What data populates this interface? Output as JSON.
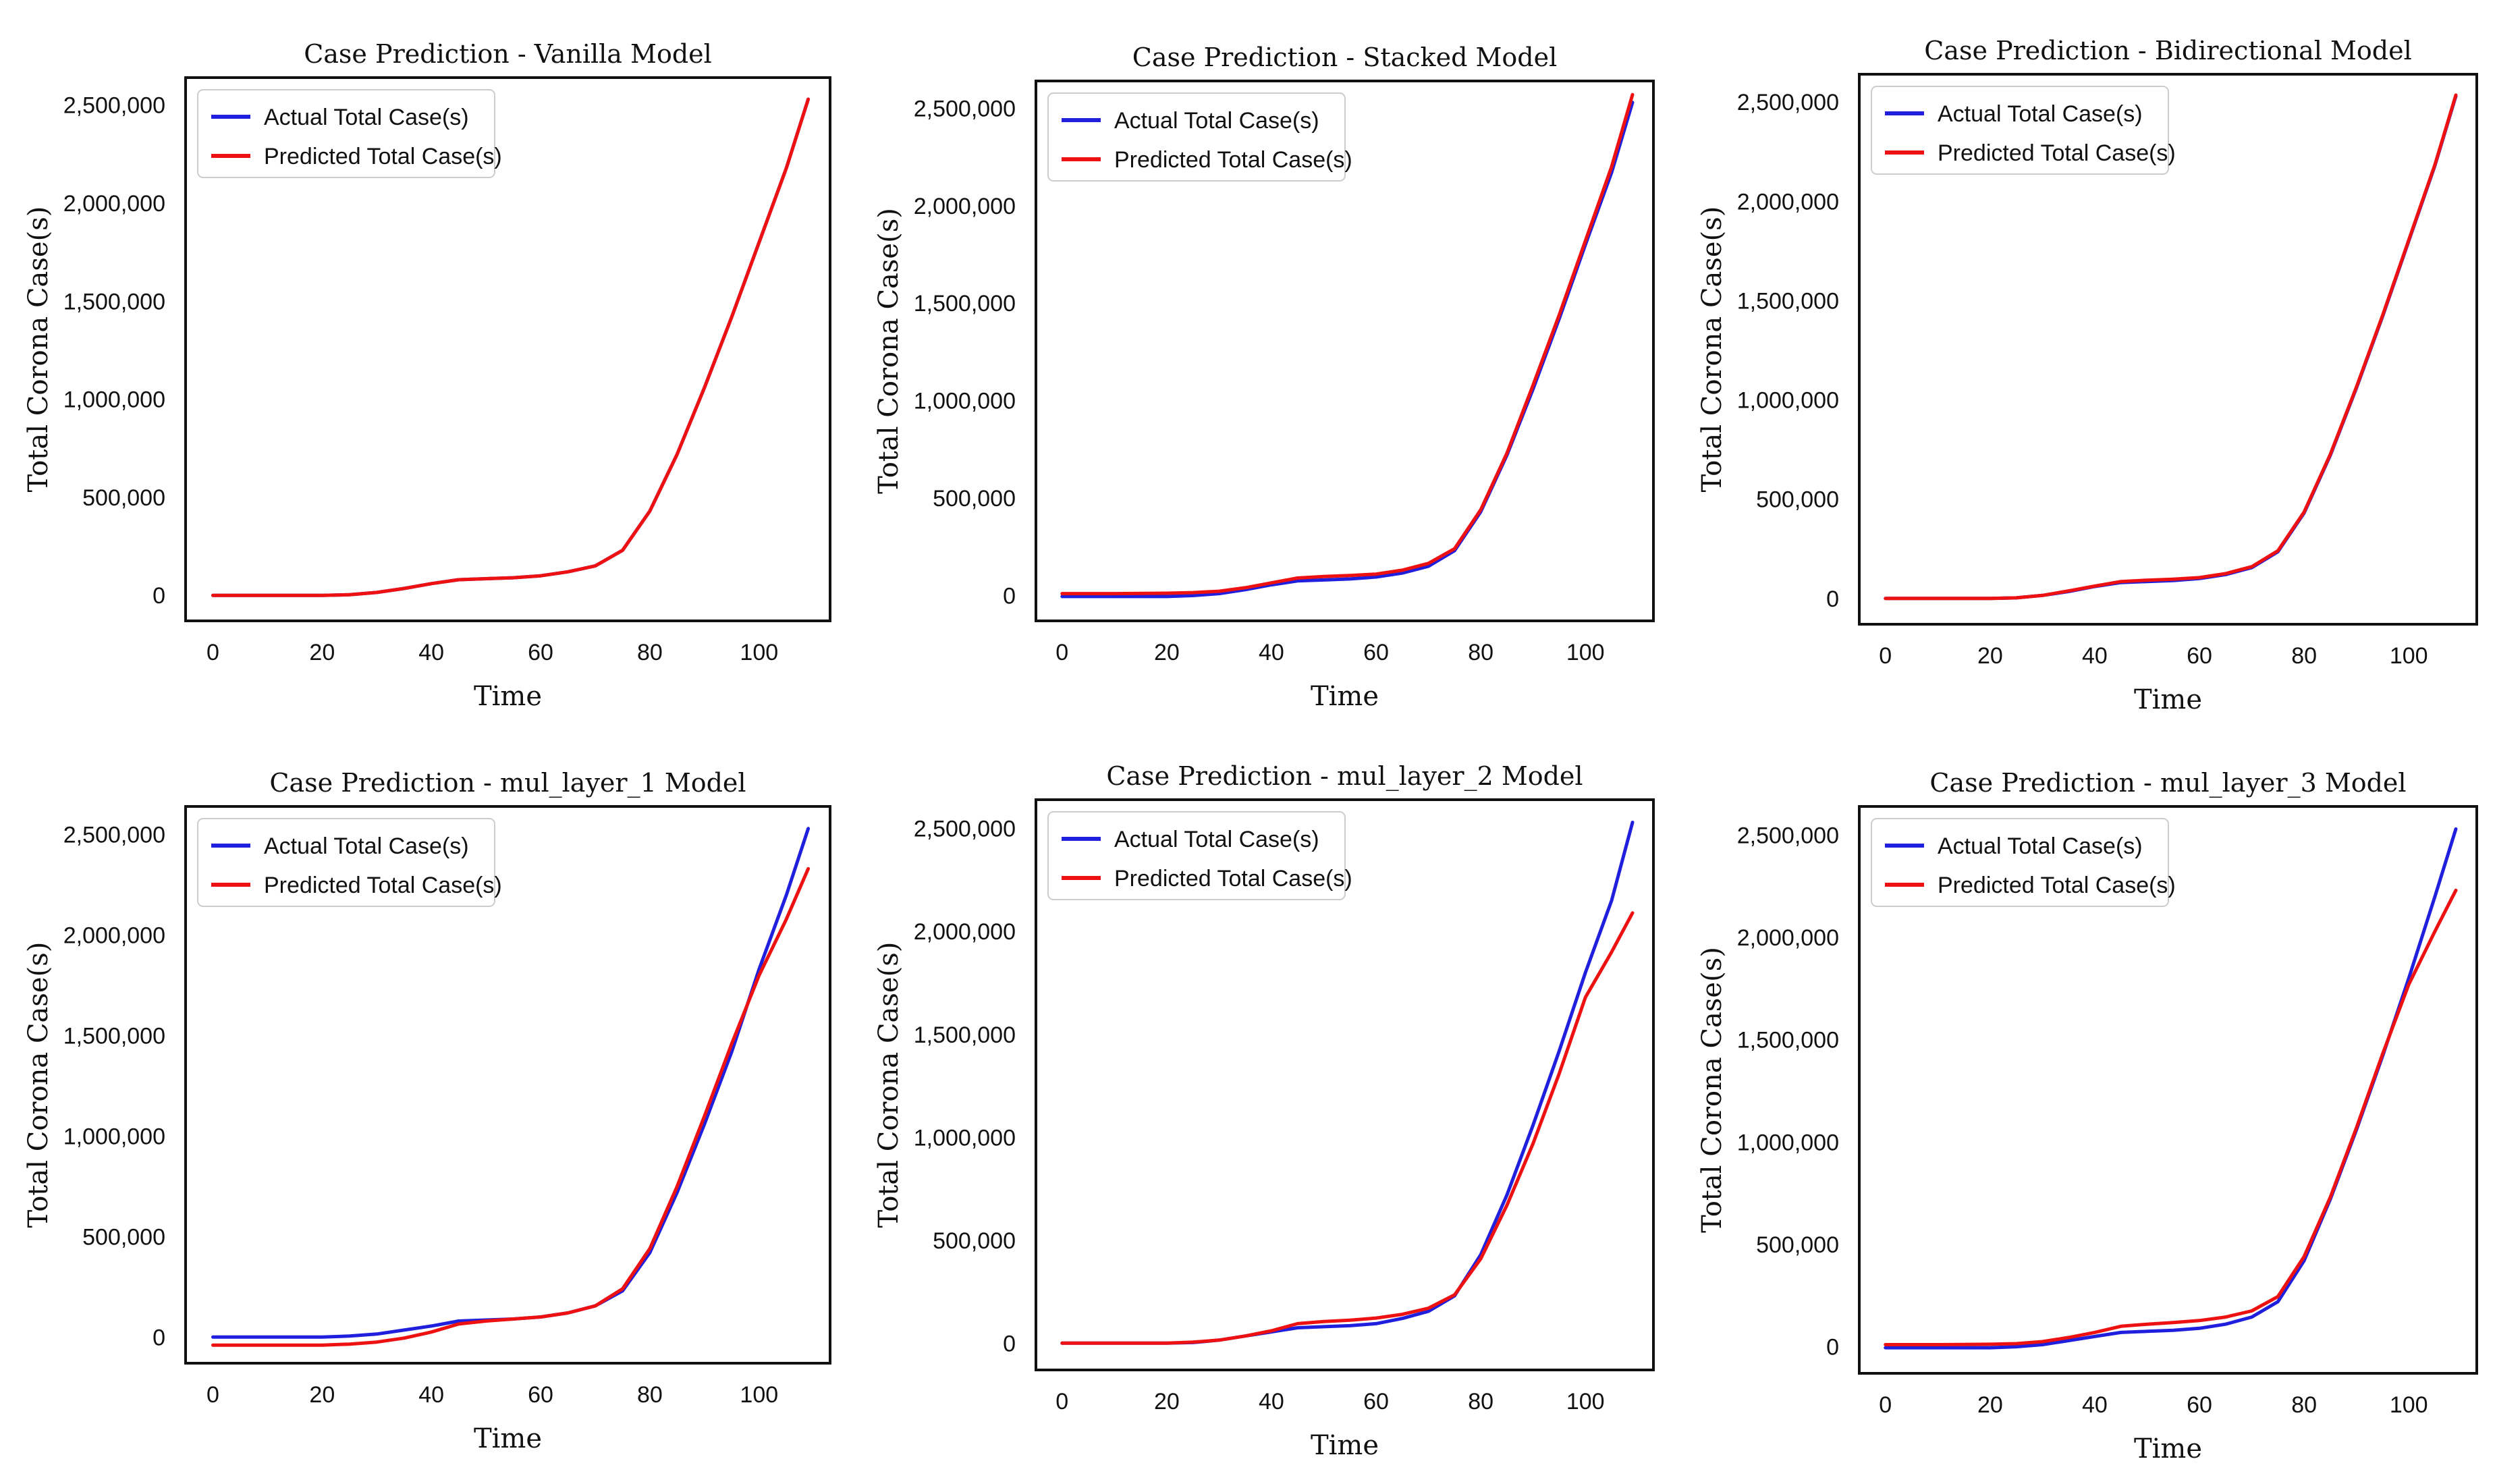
{
  "chart_data": [
    {
      "type": "line",
      "title": "Case Prediction - Vanilla Model",
      "xlabel": "Time",
      "ylabel": "Total Corona Case(s)",
      "xlim": [
        -5,
        113
      ],
      "ylim": [
        -130000,
        2640000
      ],
      "xticks": [
        0,
        20,
        40,
        60,
        80,
        100
      ],
      "yticks": [
        0,
        500000,
        1000000,
        1500000,
        2000000,
        2500000
      ],
      "ytick_labels": [
        "0",
        "500,000",
        "1,000,000",
        "1,500,000",
        "2,000,000",
        "2,500,000"
      ],
      "legend_position": "upper-left",
      "x": [
        0,
        10,
        20,
        25,
        30,
        35,
        40,
        45,
        50,
        55,
        60,
        65,
        70,
        75,
        80,
        85,
        90,
        95,
        100,
        105,
        109
      ],
      "series": [
        {
          "name": "Actual Total Case(s)",
          "color": "#1f1fdd",
          "values": [
            0,
            0,
            0,
            3000,
            15000,
            35000,
            60000,
            80000,
            85000,
            90000,
            100000,
            120000,
            150000,
            230000,
            430000,
            720000,
            1060000,
            1420000,
            1800000,
            2180000,
            2530000
          ]
        },
        {
          "name": "Predicted Total Case(s)",
          "color": "#ee1111",
          "values": [
            0,
            0,
            0,
            3000,
            15000,
            35000,
            60000,
            80000,
            85000,
            90000,
            100000,
            120000,
            150000,
            230000,
            430000,
            720000,
            1060000,
            1420000,
            1800000,
            2180000,
            2530000
          ]
        }
      ]
    },
    {
      "type": "line",
      "title": "Case Prediction - Stacked Model",
      "xlabel": "Time",
      "ylabel": "Total Corona Case(s)",
      "xlim": [
        -5,
        113
      ],
      "ylim": [
        -130000,
        2640000
      ],
      "xticks": [
        0,
        20,
        40,
        60,
        80,
        100
      ],
      "yticks": [
        0,
        500000,
        1000000,
        1500000,
        2000000,
        2500000
      ],
      "ytick_labels": [
        "0",
        "500,000",
        "1,000,000",
        "1,500,000",
        "2,000,000",
        "2,500,000"
      ],
      "legend_position": "upper-left",
      "x": [
        0,
        10,
        20,
        25,
        30,
        35,
        40,
        45,
        50,
        55,
        60,
        65,
        70,
        75,
        80,
        85,
        90,
        95,
        100,
        105,
        109
      ],
      "series": [
        {
          "name": "Actual Total Case(s)",
          "color": "#1f1fdd",
          "values": [
            -5000,
            -5000,
            -5000,
            0,
            10000,
            30000,
            55000,
            75000,
            80000,
            85000,
            95000,
            115000,
            150000,
            230000,
            430000,
            720000,
            1060000,
            1420000,
            1800000,
            2170000,
            2530000
          ]
        },
        {
          "name": "Predicted Total Case(s)",
          "color": "#ee1111",
          "values": [
            10000,
            10000,
            12000,
            15000,
            22000,
            40000,
            65000,
            90000,
            98000,
            103000,
            110000,
            130000,
            165000,
            240000,
            440000,
            730000,
            1080000,
            1440000,
            1820000,
            2200000,
            2570000
          ]
        }
      ]
    },
    {
      "type": "line",
      "title": "Case Prediction - Bidirectional Model",
      "xlabel": "Time",
      "ylabel": "Total Corona Case(s)",
      "xlim": [
        -5,
        113
      ],
      "ylim": [
        -130000,
        2640000
      ],
      "xticks": [
        0,
        20,
        40,
        60,
        80,
        100
      ],
      "yticks": [
        0,
        500000,
        1000000,
        1500000,
        2000000,
        2500000
      ],
      "ytick_labels": [
        "0",
        "500,000",
        "1,000,000",
        "1,500,000",
        "2,000,000",
        "2,500,000"
      ],
      "legend_position": "upper-left",
      "x": [
        0,
        10,
        20,
        25,
        30,
        35,
        40,
        45,
        50,
        55,
        60,
        65,
        70,
        75,
        80,
        85,
        90,
        95,
        100,
        105,
        109
      ],
      "series": [
        {
          "name": "Actual Total Case(s)",
          "color": "#1f1fdd",
          "values": [
            0,
            0,
            0,
            3000,
            15000,
            35000,
            60000,
            80000,
            85000,
            90000,
            100000,
            120000,
            155000,
            235000,
            430000,
            720000,
            1060000,
            1420000,
            1800000,
            2180000,
            2530000
          ]
        },
        {
          "name": "Predicted Total Case(s)",
          "color": "#ee1111",
          "values": [
            0,
            0,
            0,
            3000,
            15000,
            38000,
            62000,
            85000,
            92000,
            97000,
            105000,
            125000,
            160000,
            240000,
            435000,
            725000,
            1065000,
            1425000,
            1805000,
            2185000,
            2535000
          ]
        }
      ]
    },
    {
      "type": "line",
      "title": "Case Prediction - mul_layer_1 Model",
      "xlabel": "Time",
      "ylabel": "Total Corona Case(s)",
      "xlim": [
        -5,
        113
      ],
      "ylim": [
        -130000,
        2640000
      ],
      "xticks": [
        0,
        20,
        40,
        60,
        80,
        100
      ],
      "yticks": [
        0,
        500000,
        1000000,
        1500000,
        2000000,
        2500000
      ],
      "ytick_labels": [
        "0",
        "500,000",
        "1,000,000",
        "1,500,000",
        "2,000,000",
        "2,500,000"
      ],
      "legend_position": "upper-left",
      "x": [
        0,
        10,
        20,
        25,
        30,
        35,
        40,
        45,
        50,
        55,
        60,
        65,
        70,
        75,
        80,
        85,
        90,
        95,
        100,
        105,
        109
      ],
      "series": [
        {
          "name": "Actual Total Case(s)",
          "color": "#1f1fdd",
          "values": [
            0,
            0,
            0,
            5000,
            15000,
            35000,
            55000,
            80000,
            85000,
            90000,
            100000,
            120000,
            155000,
            230000,
            420000,
            720000,
            1060000,
            1420000,
            1830000,
            2200000,
            2530000
          ]
        },
        {
          "name": "Predicted Total Case(s)",
          "color": "#ee1111",
          "values": [
            -40000,
            -40000,
            -40000,
            -35000,
            -25000,
            -5000,
            25000,
            65000,
            80000,
            90000,
            100000,
            120000,
            155000,
            240000,
            440000,
            750000,
            1100000,
            1460000,
            1800000,
            2080000,
            2330000
          ]
        }
      ]
    },
    {
      "type": "line",
      "title": "Case Prediction - mul_layer_2 Model",
      "xlabel": "Time",
      "ylabel": "Total Corona Case(s)",
      "xlim": [
        -5,
        113
      ],
      "ylim": [
        -130000,
        2640000
      ],
      "xticks": [
        0,
        20,
        40,
        60,
        80,
        100
      ],
      "yticks": [
        0,
        500000,
        1000000,
        1500000,
        2000000,
        2500000
      ],
      "ytick_labels": [
        "0",
        "500,000",
        "1,000,000",
        "1,500,000",
        "2,000,000",
        "2,500,000"
      ],
      "legend_position": "upper-left",
      "x": [
        0,
        10,
        20,
        25,
        30,
        35,
        40,
        45,
        50,
        55,
        60,
        65,
        70,
        75,
        80,
        85,
        90,
        95,
        100,
        105,
        109
      ],
      "series": [
        {
          "name": "Actual Total Case(s)",
          "color": "#1f1fdd",
          "values": [
            0,
            0,
            0,
            3000,
            15000,
            35000,
            55000,
            75000,
            80000,
            85000,
            95000,
            120000,
            155000,
            230000,
            430000,
            720000,
            1060000,
            1420000,
            1800000,
            2150000,
            2530000
          ]
        },
        {
          "name": "Predicted Total Case(s)",
          "color": "#ee1111",
          "values": [
            0,
            0,
            0,
            5000,
            15000,
            35000,
            60000,
            95000,
            105000,
            112000,
            122000,
            140000,
            170000,
            235000,
            410000,
            670000,
            970000,
            1310000,
            1680000,
            1900000,
            2090000
          ]
        }
      ]
    },
    {
      "type": "line",
      "title": "Case Prediction - mul_layer_3 Model",
      "xlabel": "Time",
      "ylabel": "Total Corona Case(s)",
      "xlim": [
        -5,
        113
      ],
      "ylim": [
        -130000,
        2640000
      ],
      "xticks": [
        0,
        20,
        40,
        60,
        80,
        100
      ],
      "yticks": [
        0,
        500000,
        1000000,
        1500000,
        2000000,
        2500000
      ],
      "ytick_labels": [
        "0",
        "500,000",
        "1,000,000",
        "1,500,000",
        "2,000,000",
        "2,500,000"
      ],
      "legend_position": "upper-left",
      "x": [
        0,
        10,
        20,
        25,
        30,
        35,
        40,
        45,
        50,
        55,
        60,
        65,
        70,
        75,
        80,
        85,
        90,
        95,
        100,
        105,
        109
      ],
      "series": [
        {
          "name": "Actual Total Case(s)",
          "color": "#1f1fdd",
          "values": [
            -5000,
            -5000,
            -5000,
            0,
            10000,
            30000,
            50000,
            70000,
            75000,
            80000,
            90000,
            110000,
            145000,
            220000,
            420000,
            720000,
            1060000,
            1420000,
            1800000,
            2200000,
            2530000
          ]
        },
        {
          "name": "Predicted Total Case(s)",
          "color": "#ee1111",
          "values": [
            10000,
            10000,
            12000,
            15000,
            25000,
            45000,
            70000,
            100000,
            110000,
            118000,
            128000,
            145000,
            175000,
            245000,
            440000,
            730000,
            1070000,
            1430000,
            1770000,
            2030000,
            2230000
          ]
        }
      ]
    }
  ]
}
